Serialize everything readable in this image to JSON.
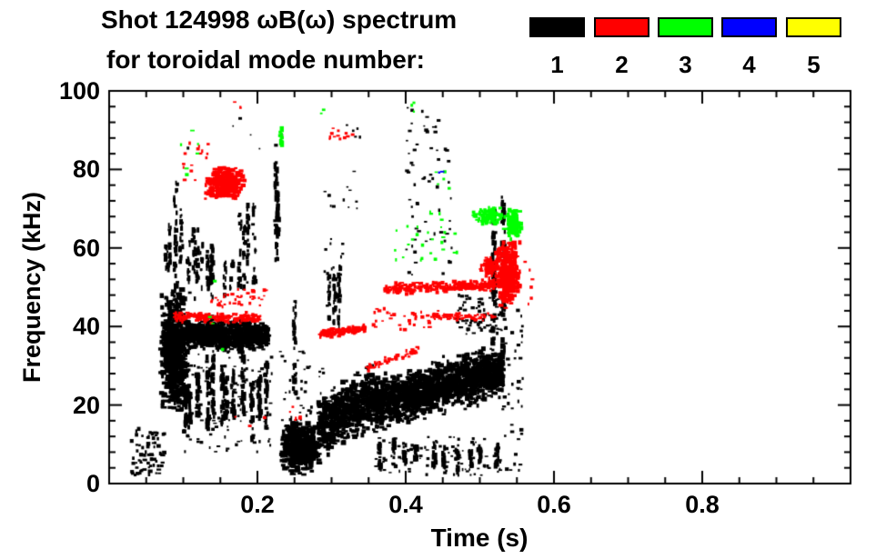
{
  "figure": {
    "title_line1": "Shot 124998 ωB(ω) spectrum",
    "title_line2": "for toroidal mode number:",
    "background": "#ffffff",
    "foreground": "#000000"
  },
  "legend": {
    "items": [
      {
        "label": "1",
        "color": "#000000"
      },
      {
        "label": "2",
        "color": "#ff0000"
      },
      {
        "label": "3",
        "color": "#00ff00"
      },
      {
        "label": "4",
        "color": "#0000ff"
      },
      {
        "label": "5",
        "color": "#ffff00"
      }
    ]
  },
  "axes": {
    "x": {
      "title": "Time (s)",
      "range": [
        0,
        1.0
      ],
      "major_ticks": [
        0.2,
        0.4,
        0.6,
        0.8
      ],
      "major_labels": [
        "0.2",
        "0.4",
        "0.6",
        "0.8"
      ],
      "minor_step": 0.05
    },
    "y": {
      "title": "Frequency (kHz)",
      "range": [
        0,
        100
      ],
      "major_ticks": [
        0,
        20,
        40,
        60,
        80,
        100
      ],
      "major_labels": [
        "0",
        "20",
        "40",
        "60",
        "80",
        "100"
      ],
      "minor_step": 4
    }
  },
  "chart_data": {
    "type": "scatter",
    "title": "Shot 124998 ωB(ω) spectrum for toroidal mode number: 1 2 3 4 5",
    "xlabel": "Time (s)",
    "ylabel": "Frequency (kHz)",
    "xlim": [
      0,
      1.0
    ],
    "ylim": [
      0,
      100
    ],
    "grid": false,
    "legend_position": "top-right",
    "units": {
      "t": "s",
      "f": "kHz"
    },
    "series": [
      {
        "name": "n=1",
        "mode": 1,
        "color": "#000000",
        "clusters": [
          {
            "s": "dots",
            "t": [
              0.03,
              0.075
            ],
            "f": [
              2,
              14
            ],
            "n": 70,
            "sz": 2.5
          },
          {
            "s": "blob",
            "t": [
              0.068,
              0.108
            ],
            "f": [
              17,
              50
            ],
            "n": 650,
            "sz": 3.2
          },
          {
            "s": "band",
            "t": [
              0.1,
              0.215
            ],
            "fc": [
              38,
              37.5
            ],
            "fs": 3.2,
            "n": 800,
            "sz": 3
          },
          {
            "s": "streaks",
            "t": [
              0.095,
              0.215
            ],
            "f": [
              10,
              34
            ],
            "ns": 12,
            "n": 260,
            "sz": 2.4
          },
          {
            "s": "dots",
            "t": [
              0.1,
              0.22
            ],
            "f": [
              8,
              33
            ],
            "n": 120,
            "sz": 2
          },
          {
            "s": "streaks",
            "t": [
              0.1,
              0.145
            ],
            "f": [
              45,
              67
            ],
            "ns": 5,
            "n": 80,
            "sz": 2
          },
          {
            "s": "streaks",
            "t": [
              0.073,
              0.082
            ],
            "f": [
              50,
              66
            ],
            "ns": 2,
            "n": 30,
            "sz": 2
          },
          {
            "s": "streaks",
            "t": [
              0.085,
              0.1
            ],
            "f": [
              45,
              80
            ],
            "ns": 3,
            "n": 55,
            "sz": 2
          },
          {
            "s": "streaks",
            "t": [
              0.115,
              0.17
            ],
            "f": [
              45,
              62
            ],
            "ns": 5,
            "n": 50,
            "sz": 2
          },
          {
            "s": "streaks",
            "t": [
              0.172,
              0.2
            ],
            "f": [
              44,
              72
            ],
            "ns": 4,
            "n": 70,
            "sz": 2
          },
          {
            "s": "streaks",
            "t": [
              0.222,
              0.231
            ],
            "f": [
              53,
              83
            ],
            "ns": 2,
            "n": 55,
            "sz": 2.4
          },
          {
            "s": "blob",
            "t": [
              0.23,
              0.285
            ],
            "f": [
              2,
              16
            ],
            "n": 450,
            "sz": 3.2
          },
          {
            "s": "dots",
            "t": [
              0.23,
              0.29
            ],
            "f": [
              16,
              34
            ],
            "n": 40,
            "sz": 2
          },
          {
            "s": "streaks",
            "t": [
              0.245,
              0.251
            ],
            "f": [
              15,
              50
            ],
            "ns": 1,
            "n": 40,
            "sz": 2
          },
          {
            "s": "band",
            "t": [
              0.282,
              0.358
            ],
            "fc": [
              14,
              23
            ],
            "fs": 6.5,
            "n": 650,
            "sz": 3
          },
          {
            "s": "streaks",
            "t": [
              0.295,
              0.312
            ],
            "f": [
              35,
              56
            ],
            "ns": 3,
            "n": 55,
            "sz": 2
          },
          {
            "s": "band",
            "t": [
              0.358,
              0.532
            ],
            "fc": [
              20,
              29
            ],
            "fs": 5.5,
            "n": 1600,
            "sz": 3
          },
          {
            "s": "streaks",
            "t": [
              0.362,
              0.525
            ],
            "f": [
              2,
              12
            ],
            "ns": 10,
            "n": 160,
            "sz": 2.2
          },
          {
            "s": "dots",
            "t": [
              0.36,
              0.53
            ],
            "f": [
              2,
              12
            ],
            "n": 100,
            "sz": 2
          },
          {
            "s": "dots",
            "t": [
              0.4,
              0.462
            ],
            "f": [
              52,
              96
            ],
            "n": 65,
            "sz": 2.2
          },
          {
            "s": "streaks",
            "t": [
              0.518,
              0.535
            ],
            "f": [
              20,
              76
            ],
            "ns": 2,
            "n": 95,
            "sz": 2.5
          },
          {
            "s": "dots",
            "t": [
              0.468,
              0.53
            ],
            "f": [
              38,
              48
            ],
            "n": 70,
            "sz": 2.2
          },
          {
            "s": "dots",
            "t": [
              0.32,
              0.34
            ],
            "f": [
              87,
              92
            ],
            "n": 5,
            "sz": 2
          },
          {
            "s": "dots",
            "t": [
              0.29,
              0.335
            ],
            "f": [
              70,
              80
            ],
            "n": 12,
            "sz": 2
          },
          {
            "s": "dots",
            "t": [
              0.28,
              0.32
            ],
            "f": [
              53,
              63
            ],
            "n": 10,
            "sz": 2
          },
          {
            "s": "dots",
            "t": [
              0.06,
              0.26
            ],
            "f": [
              82,
              95
            ],
            "n": 7,
            "sz": 2
          },
          {
            "s": "dots",
            "t": [
              0.53,
              0.558
            ],
            "f": [
              3,
              45
            ],
            "n": 45,
            "sz": 2.2
          }
        ]
      },
      {
        "name": "n=2",
        "mode": 2,
        "color": "#ff0000",
        "clusters": [
          {
            "s": "blob",
            "t": [
              0.128,
              0.185
            ],
            "f": [
              72,
              81
            ],
            "n": 280,
            "sz": 3
          },
          {
            "s": "dots",
            "t": [
              0.1,
              0.135
            ],
            "f": [
              77,
              88
            ],
            "n": 16,
            "sz": 2.2
          },
          {
            "s": "band",
            "t": [
              0.088,
              0.205
            ],
            "fc": [
              42.5,
              42
            ],
            "fs": 1.1,
            "n": 170,
            "sz": 2.5
          },
          {
            "s": "dots",
            "t": [
              0.135,
              0.215
            ],
            "f": [
              45,
              49.5
            ],
            "n": 40,
            "sz": 2.2
          },
          {
            "s": "band",
            "t": [
              0.283,
              0.345
            ],
            "fc": [
              38,
              39.5
            ],
            "fs": 0.9,
            "n": 120,
            "sz": 2.5
          },
          {
            "s": "band",
            "t": [
              0.345,
              0.42
            ],
            "fc": [
              29.5,
              34
            ],
            "fs": 0.9,
            "n": 45,
            "sz": 2.2
          },
          {
            "s": "dots",
            "t": [
              0.355,
              0.445
            ],
            "f": [
              39,
              45
            ],
            "n": 35,
            "sz": 2.2
          },
          {
            "s": "band",
            "t": [
              0.37,
              0.545
            ],
            "fc": [
              49.5,
              51
            ],
            "fs": 1.2,
            "n": 270,
            "sz": 2.6
          },
          {
            "s": "band",
            "t": [
              0.435,
              0.52
            ],
            "fc": [
              42.5,
              42.5
            ],
            "fs": 0.8,
            "n": 70,
            "sz": 2.2
          },
          {
            "s": "blob",
            "t": [
              0.5,
              0.528
            ],
            "f": [
              52,
              58
            ],
            "n": 80,
            "sz": 2.6
          },
          {
            "s": "blob",
            "t": [
              0.522,
              0.556
            ],
            "f": [
              44,
              62
            ],
            "n": 320,
            "sz": 3
          },
          {
            "s": "dots",
            "t": [
              0.295,
              0.335
            ],
            "f": [
              87.5,
              91
            ],
            "n": 12,
            "sz": 2.2
          },
          {
            "s": "dots",
            "t": [
              0.168,
              0.178
            ],
            "f": [
              95.5,
              97.5
            ],
            "n": 3,
            "sz": 2
          },
          {
            "s": "dots",
            "t": [
              0.24,
              0.26
            ],
            "f": [
              16,
              20
            ],
            "n": 6,
            "sz": 2.2
          },
          {
            "s": "dots",
            "t": [
              0.17,
              0.21
            ],
            "f": [
              14,
              19
            ],
            "n": 3,
            "sz": 2
          },
          {
            "s": "dots",
            "t": [
              0.558,
              0.572
            ],
            "f": [
              44,
              57
            ],
            "n": 6,
            "sz": 2
          }
        ]
      },
      {
        "name": "n=3",
        "mode": 3,
        "color": "#00ff00",
        "clusters": [
          {
            "s": "dots",
            "t": [
              0.088,
              0.125
            ],
            "f": [
              78,
              90
            ],
            "n": 6,
            "sz": 2.4
          },
          {
            "s": "streaks",
            "t": [
              0.228,
              0.234
            ],
            "f": [
              84,
              91
            ],
            "ns": 1,
            "n": 10,
            "sz": 2.2
          },
          {
            "s": "dots",
            "t": [
              0.285,
              0.295
            ],
            "f": [
              94,
              96
            ],
            "n": 2,
            "sz": 2.2
          },
          {
            "s": "dots",
            "t": [
              0.385,
              0.47
            ],
            "f": [
              56,
              70
            ],
            "n": 28,
            "sz": 2.2
          },
          {
            "s": "blob",
            "t": [
              0.488,
              0.535
            ],
            "f": [
              65.5,
              70.5
            ],
            "n": 90,
            "sz": 2.6
          },
          {
            "s": "blob",
            "t": [
              0.533,
              0.557
            ],
            "f": [
              62,
              70
            ],
            "n": 90,
            "sz": 3
          },
          {
            "s": "dots",
            "t": [
              0.405,
              0.415
            ],
            "f": [
              94,
              97
            ],
            "n": 3,
            "sz": 2
          },
          {
            "s": "dots",
            "t": [
              0.13,
              0.165
            ],
            "f": [
              28,
              52
            ],
            "n": 4,
            "sz": 2
          },
          {
            "s": "dots",
            "t": [
              0.44,
              0.46
            ],
            "f": [
              73,
              85
            ],
            "n": 5,
            "sz": 2
          }
        ]
      },
      {
        "name": "n=4",
        "mode": 4,
        "color": "#0000ff",
        "clusters": [
          {
            "s": "dots",
            "t": [
              0.444,
              0.45
            ],
            "f": [
              78.5,
              80
            ],
            "n": 2,
            "sz": 2.2
          }
        ]
      },
      {
        "name": "n=5",
        "mode": 5,
        "color": "#ffff00",
        "clusters": []
      }
    ]
  }
}
